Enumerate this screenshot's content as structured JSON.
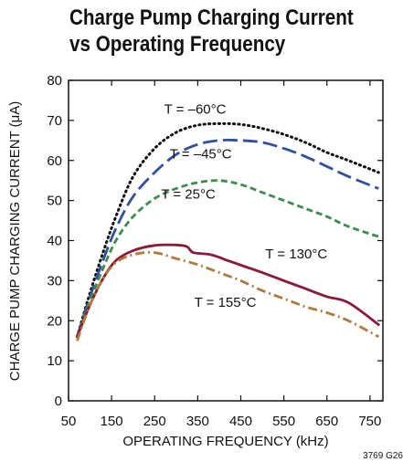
{
  "chart_data": {
    "type": "line",
    "title_line1": "Charge Pump Charging Current",
    "title_line2": "vs Operating Frequency",
    "xlabel": "OPERATING FREQUENCY (kHz)",
    "ylabel": "CHARGE PUMP CHARGING CURRENT (μA)",
    "xlim": [
      50,
      780
    ],
    "ylim": [
      0,
      80
    ],
    "xticks": [
      50,
      150,
      250,
      350,
      450,
      550,
      650,
      750
    ],
    "yticks": [
      0,
      10,
      20,
      30,
      40,
      50,
      60,
      70,
      80
    ],
    "grid": false,
    "figure_id": "3769 G26",
    "series": [
      {
        "name": "T = –60°C",
        "color": "#111111",
        "dash": "dotted",
        "x": [
          70,
          100,
          130,
          160,
          200,
          250,
          300,
          350,
          400,
          450,
          500,
          550,
          600,
          650,
          700,
          770
        ],
        "y": [
          16,
          27,
          37,
          46,
          56,
          63,
          67,
          68.8,
          69.2,
          69,
          68,
          66.5,
          64.5,
          62,
          60,
          57
        ]
      },
      {
        "name": "T = –45°C",
        "color": "#2f4f9f",
        "dash": "longdash",
        "x": [
          70,
          100,
          130,
          160,
          200,
          250,
          300,
          350,
          400,
          450,
          500,
          550,
          600,
          650,
          700,
          770
        ],
        "y": [
          16,
          26,
          35,
          43,
          51,
          57,
          61.5,
          64,
          65,
          65,
          64.5,
          63,
          61,
          58.5,
          56,
          53
        ]
      },
      {
        "name": "T = 25°C",
        "color": "#3c8c4a",
        "dash": "dashed",
        "x": [
          70,
          100,
          130,
          160,
          200,
          250,
          300,
          350,
          400,
          450,
          500,
          550,
          600,
          650,
          700,
          770
        ],
        "y": [
          16,
          25,
          33,
          40,
          46,
          50.5,
          53,
          54.5,
          55,
          54,
          52,
          50,
          48,
          46,
          43.5,
          41
        ]
      },
      {
        "name": "T = 130°C",
        "color": "#8b1a3a",
        "dash": "solid",
        "x": [
          70,
          100,
          130,
          160,
          200,
          250,
          300,
          325,
          340,
          380,
          420,
          460,
          500,
          550,
          600,
          650,
          700,
          770
        ],
        "y": [
          16,
          24,
          30.5,
          35,
          37.5,
          38.8,
          38.9,
          38.5,
          37,
          36.5,
          35,
          33.5,
          32,
          30,
          28,
          26,
          24.5,
          19
        ]
      },
      {
        "name": "T = 155°C",
        "color": "#b07a3a",
        "dash": "dashdot",
        "x": [
          70,
          100,
          130,
          160,
          200,
          250,
          300,
          350,
          400,
          450,
          500,
          550,
          600,
          650,
          700,
          770
        ],
        "y": [
          15,
          24,
          30.5,
          34.5,
          36.5,
          37,
          35.5,
          34,
          32,
          30,
          27.5,
          25.5,
          23.5,
          22,
          20,
          16
        ]
      }
    ]
  }
}
